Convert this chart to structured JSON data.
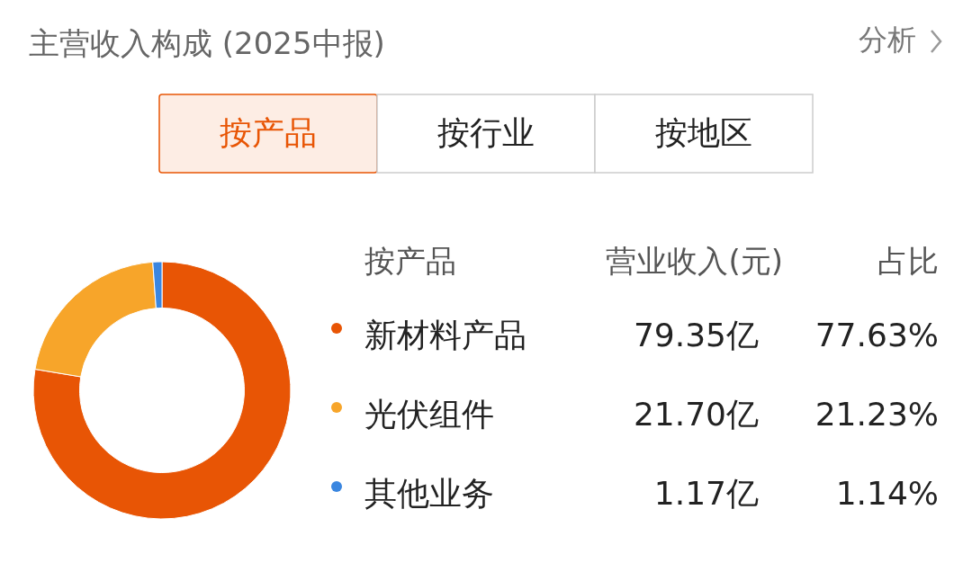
{
  "chart_data": {
    "type": "donut",
    "title": "主营收入构成 (2025中报)",
    "categories": [
      "新材料产品",
      "光伏组件",
      "其他业务"
    ],
    "values": [
      79.35,
      21.7,
      1.17
    ],
    "value_labels": [
      "79.35亿",
      "21.70亿",
      "1.17亿"
    ],
    "colors": [
      "#e85505",
      "#f7a52a",
      "#3a86e0"
    ],
    "legend": "right",
    "annotations": [
      "分析",
      "按产品",
      "按行业",
      "按地区",
      "按产品",
      "营业收入(元)",
      "占比",
      "77.63%",
      "21.23%",
      "1.14%"
    ]
  }
}
